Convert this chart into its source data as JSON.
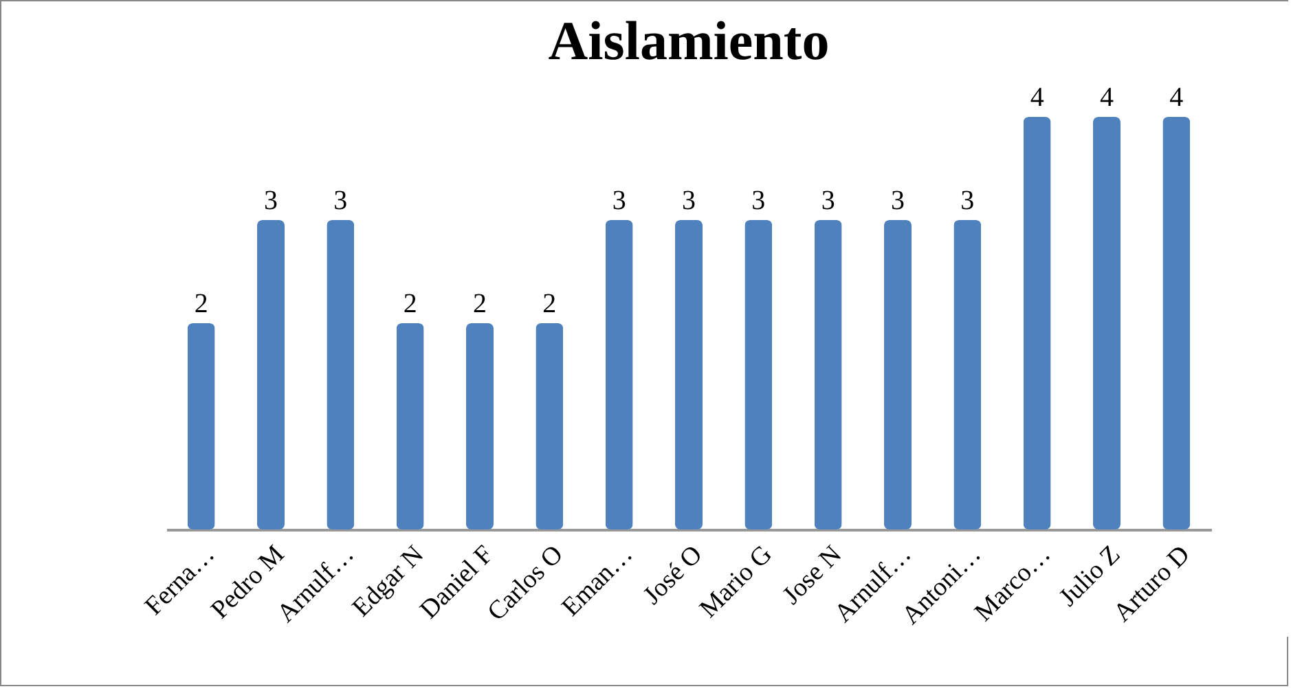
{
  "chart_data": {
    "type": "bar",
    "title": "Aislamiento",
    "categories": [
      "Ferna…",
      "Pedro M",
      "Arnulf…",
      "Edgar N",
      "Daniel F",
      "Carlos O",
      "Eman…",
      "José O",
      "Mario G",
      "Jose N",
      "Arnulf…",
      "Antoni…",
      "Marco…",
      "Julio Z",
      "Arturo D"
    ],
    "values": [
      2,
      3,
      3,
      2,
      2,
      2,
      3,
      3,
      3,
      3,
      3,
      3,
      4,
      4,
      4
    ],
    "color": "#4f81bd",
    "data_labels": true,
    "grid": false
  }
}
